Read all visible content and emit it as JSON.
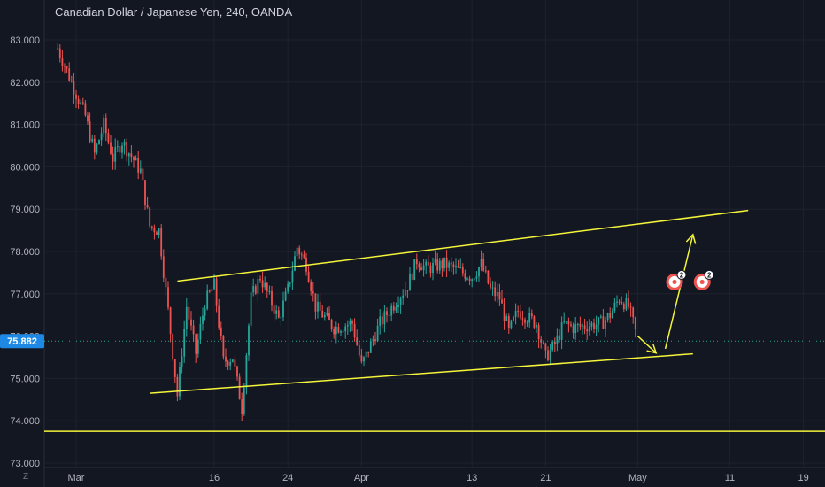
{
  "header": {
    "title": "Canadian Dollar / Japanese Yen, 240, OANDA"
  },
  "timezone_label": "Z",
  "current_price_label": "75.882",
  "colors": {
    "background": "#131722",
    "up": "#26a69a",
    "down": "#ef5350",
    "drawing": "#f5f53a",
    "grid": "#1e222d",
    "price_tag": "#1e88e5"
  },
  "chart_data": {
    "type": "candlestick",
    "symbol": "CAD/JPY",
    "timeframe": "240",
    "source": "OANDA",
    "ylim": [
      72.95,
      83.6
    ],
    "y_ticks": [
      73.0,
      74.0,
      75.0,
      76.0,
      77.0,
      78.0,
      79.0,
      80.0,
      81.0,
      82.0,
      83.0
    ],
    "y_tick_labels": [
      "73.000",
      "74.000",
      "75.000",
      "76.000",
      "77.000",
      "78.000",
      "79.000",
      "80.000",
      "81.000",
      "82.000",
      "83.000"
    ],
    "x_tick_labels": [
      "Mar",
      "16",
      "24",
      "Apr",
      "13",
      "21",
      "May",
      "11",
      "19"
    ],
    "x_tick_dates": [
      "2020-03-01",
      "2020-03-16",
      "2020-03-24",
      "2020-04-01",
      "2020-04-13",
      "2020-04-21",
      "2020-05-01",
      "2020-05-11",
      "2020-05-19"
    ],
    "last_price": 75.882,
    "price_path": [
      [
        "2020-02-28",
        82.8
      ],
      [
        "2020-03-02",
        81.2
      ],
      [
        "2020-03-03",
        80.3
      ],
      [
        "2020-03-04",
        81.0
      ],
      [
        "2020-03-05",
        80.2
      ],
      [
        "2020-03-06",
        80.6
      ],
      [
        "2020-03-08",
        79.9
      ],
      [
        "2020-03-09",
        78.6
      ],
      [
        "2020-03-10",
        78.5
      ],
      [
        "2020-03-11",
        76.6
      ],
      [
        "2020-03-12",
        74.6
      ],
      [
        "2020-03-13",
        76.7
      ],
      [
        "2020-03-14",
        75.6
      ],
      [
        "2020-03-15",
        76.8
      ],
      [
        "2020-03-16",
        77.2
      ],
      [
        "2020-03-17",
        75.4
      ],
      [
        "2020-03-18",
        75.5
      ],
      [
        "2020-03-19",
        74.3
      ],
      [
        "2020-03-20",
        76.9
      ],
      [
        "2020-03-21",
        77.4
      ],
      [
        "2020-03-23",
        76.4
      ],
      [
        "2020-03-24",
        77.1
      ],
      [
        "2020-03-25",
        78.1
      ],
      [
        "2020-03-26",
        77.7
      ],
      [
        "2020-03-27",
        76.7
      ],
      [
        "2020-03-29",
        76.2
      ],
      [
        "2020-03-31",
        76.3
      ],
      [
        "2020-04-01",
        75.3
      ],
      [
        "2020-04-02",
        75.8
      ],
      [
        "2020-04-03",
        76.3
      ],
      [
        "2020-04-06",
        77.2
      ],
      [
        "2020-04-07",
        77.8
      ],
      [
        "2020-04-08",
        77.6
      ],
      [
        "2020-04-10",
        77.7
      ],
      [
        "2020-04-13",
        77.4
      ],
      [
        "2020-04-14",
        77.7
      ],
      [
        "2020-04-15",
        77.1
      ],
      [
        "2020-04-16",
        76.9
      ],
      [
        "2020-04-17",
        76.1
      ],
      [
        "2020-04-18",
        76.6
      ],
      [
        "2020-04-20",
        76.3
      ],
      [
        "2020-04-21",
        75.5
      ],
      [
        "2020-04-22",
        75.8
      ],
      [
        "2020-04-23",
        76.3
      ],
      [
        "2020-04-24",
        76.2
      ],
      [
        "2020-04-27",
        76.3
      ],
      [
        "2020-04-28",
        76.5
      ],
      [
        "2020-04-29",
        76.9
      ],
      [
        "2020-04-30",
        76.7
      ],
      [
        "2020-05-01",
        75.9
      ]
    ],
    "drawings": [
      {
        "type": "trendline",
        "name": "upper-channel-line",
        "points": [
          [
            "2020-03-12",
            77.3
          ],
          [
            "2020-05-13",
            78.97
          ]
        ]
      },
      {
        "type": "trendline",
        "name": "lower-channel-line",
        "points": [
          [
            "2020-03-09",
            74.65
          ],
          [
            "2020-05-07",
            75.58
          ]
        ]
      },
      {
        "type": "horizontal-line",
        "name": "support-line",
        "price": 73.75
      },
      {
        "type": "arrow",
        "name": "down-projection-arrow",
        "points": [
          [
            "2020-05-01",
            76.0
          ],
          [
            "2020-05-03",
            75.6
          ]
        ]
      },
      {
        "type": "arrow",
        "name": "up-projection-arrow",
        "points": [
          [
            "2020-05-04",
            75.7
          ],
          [
            "2020-05-07",
            78.4
          ]
        ]
      }
    ],
    "event_markers": [
      {
        "name": "event-marker-1",
        "count": "2",
        "date": "2020-05-05",
        "price": 77.28
      },
      {
        "name": "event-marker-2",
        "count": "2",
        "date": "2020-05-08",
        "price": 77.28
      }
    ]
  }
}
